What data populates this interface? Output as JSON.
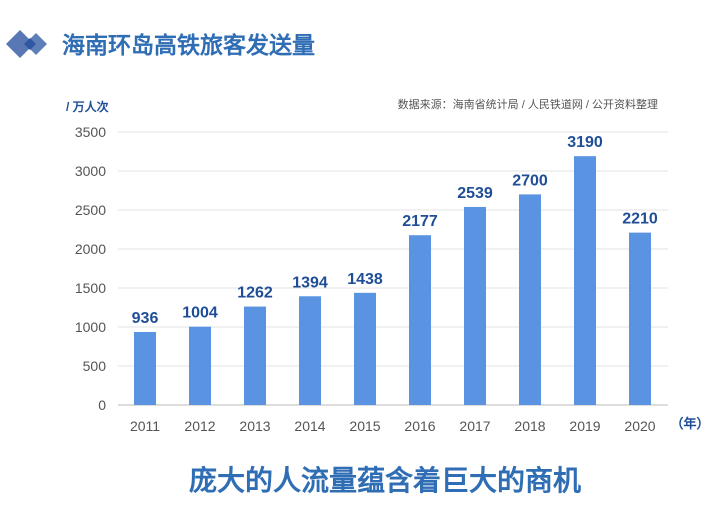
{
  "header": {
    "title": "海南环岛高铁旅客发送量"
  },
  "source": "数据来源：海南省统计局 / 人民铁道网  / 公开资料整理",
  "footer": "庞大的人流量蕴含着巨大的商机",
  "colors": {
    "bar": "#5b93e3",
    "label": "#1f4e96",
    "title": "#2f6db5",
    "diamond": "#4a6fad",
    "footer": "#2f6db5"
  },
  "chart_data": {
    "type": "bar",
    "title": "海南环岛高铁旅客发送量",
    "ylabel": "/ 万人次",
    "xlabel": "（年）",
    "categories": [
      "2011",
      "2012",
      "2013",
      "2014",
      "2015",
      "2016",
      "2017",
      "2018",
      "2019",
      "2020"
    ],
    "values": [
      936,
      1004,
      1262,
      1394,
      1438,
      2177,
      2539,
      2700,
      3190,
      2210
    ],
    "ylim": [
      0,
      3500
    ],
    "yticks": [
      "0",
      "500",
      "1000",
      "1500",
      "2000",
      "2500",
      "3000",
      "3500"
    ],
    "grid": true
  }
}
